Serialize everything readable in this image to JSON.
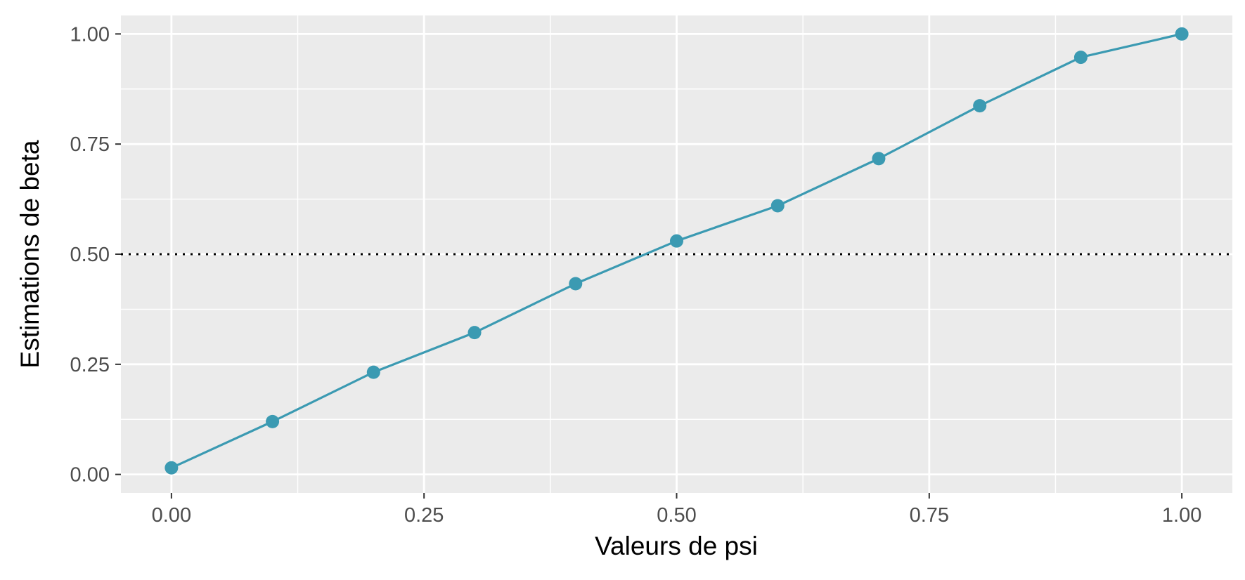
{
  "chart_data": {
    "type": "line",
    "title": "",
    "xlabel": "Valeurs de psi",
    "ylabel": "Estimations de beta",
    "xlim": [
      -0.05,
      1.05
    ],
    "ylim": [
      -0.042,
      1.042
    ],
    "x_ticks": [
      0.0,
      0.25,
      0.5,
      0.75,
      1.0
    ],
    "x_tick_labels": [
      "0.00",
      "0.25",
      "0.50",
      "0.75",
      "1.00"
    ],
    "y_ticks": [
      0.0,
      0.25,
      0.5,
      0.75,
      1.0
    ],
    "y_tick_labels": [
      "0.00",
      "0.25",
      "0.50",
      "0.75",
      "1.00"
    ],
    "grid": true,
    "series": [
      {
        "x": [
          0.0,
          0.1,
          0.2,
          0.3,
          0.4,
          0.5,
          0.6,
          0.7,
          0.8,
          0.9,
          1.0
        ],
        "values": [
          0.015,
          0.12,
          0.232,
          0.322,
          0.433,
          0.53,
          0.61,
          0.717,
          0.837,
          0.947,
          1.0
        ],
        "color": "#3b9ab2",
        "markers": true
      }
    ],
    "reference_lines": [
      {
        "axis": "y",
        "value": 0.5,
        "style": "dotted",
        "color": "#000000"
      }
    ],
    "panel_background": "#ebebeb",
    "grid_color": "#ffffff"
  }
}
